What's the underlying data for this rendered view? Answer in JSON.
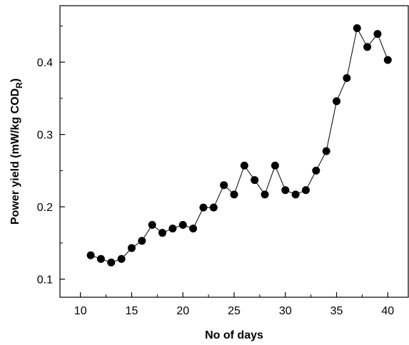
{
  "chart_data": {
    "type": "scatter",
    "line_connected": true,
    "xlabel": "No of days",
    "ylabel": "Power yield (mW/kg COD",
    "ylabel_subscript": "R",
    "ylabel_close": ")",
    "xlim": [
      8,
      42
    ],
    "ylim": [
      0.075,
      0.478
    ],
    "x_ticks": [
      10,
      15,
      20,
      25,
      30,
      35,
      40
    ],
    "x_tick_labels": [
      "10",
      "15",
      "20",
      "25",
      "30",
      "35",
      "40"
    ],
    "y_ticks": [
      0.1,
      0.2,
      0.3,
      0.4
    ],
    "y_tick_labels": [
      "0.1",
      "0.2",
      "0.3",
      "0.4"
    ],
    "grid": false,
    "legend": "none",
    "colors": {
      "marker": "#000000",
      "line": "#000000"
    },
    "series": [
      {
        "x": [
          11,
          12,
          13,
          14,
          15,
          16,
          17,
          18,
          19,
          20,
          21,
          22,
          23,
          24,
          25,
          26,
          27,
          28,
          29,
          30,
          31,
          32,
          33,
          34,
          35,
          36,
          37,
          38,
          39,
          40
        ],
        "y": [
          0.133,
          0.128,
          0.123,
          0.128,
          0.143,
          0.153,
          0.175,
          0.164,
          0.17,
          0.175,
          0.17,
          0.199,
          0.199,
          0.23,
          0.217,
          0.257,
          0.237,
          0.217,
          0.257,
          0.223,
          0.217,
          0.223,
          0.25,
          0.277,
          0.346,
          0.378,
          0.447,
          0.421,
          0.439,
          0.403
        ]
      }
    ]
  }
}
